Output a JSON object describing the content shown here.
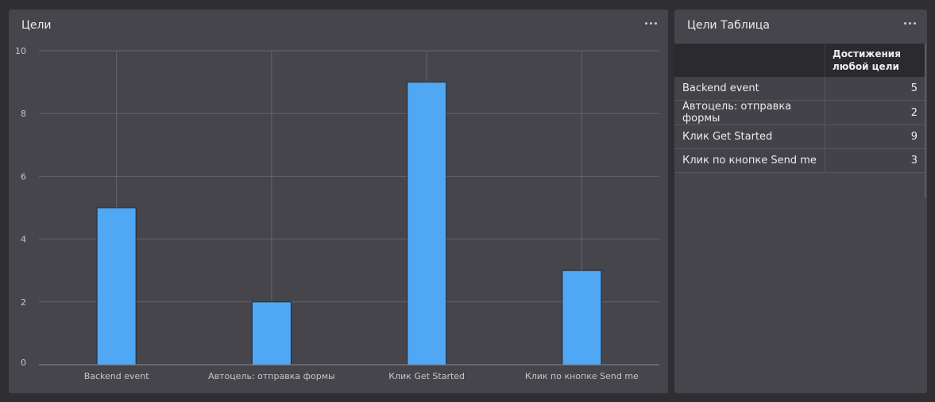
{
  "chart_widget": {
    "title": "Цели",
    "menu_icon": "more-horizontal-icon"
  },
  "table_widget": {
    "title": "Цели Таблица",
    "menu_icon": "more-horizontal-icon",
    "columns": [
      "",
      "Достижения любой цели"
    ],
    "rows": [
      {
        "goal": "Backend event",
        "value": "5"
      },
      {
        "goal": "Автоцель: отправка формы",
        "value": "2"
      },
      {
        "goal": "Клик Get Started",
        "value": "9"
      },
      {
        "goal": "Клик по кнопке Send me",
        "value": "3"
      }
    ]
  },
  "chart_data": {
    "type": "bar",
    "categories": [
      "Backend event",
      "Автоцель: отправка формы",
      "Клик Get Started",
      "Клик по кнопке Send me"
    ],
    "values": [
      5,
      2,
      9,
      3
    ],
    "title": "Цели",
    "xlabel": "",
    "ylabel": "",
    "ylim": [
      0,
      10
    ],
    "yticks": [
      0,
      2,
      4,
      6,
      8,
      10
    ],
    "grid": true,
    "bar_color": "#50a7f3"
  }
}
